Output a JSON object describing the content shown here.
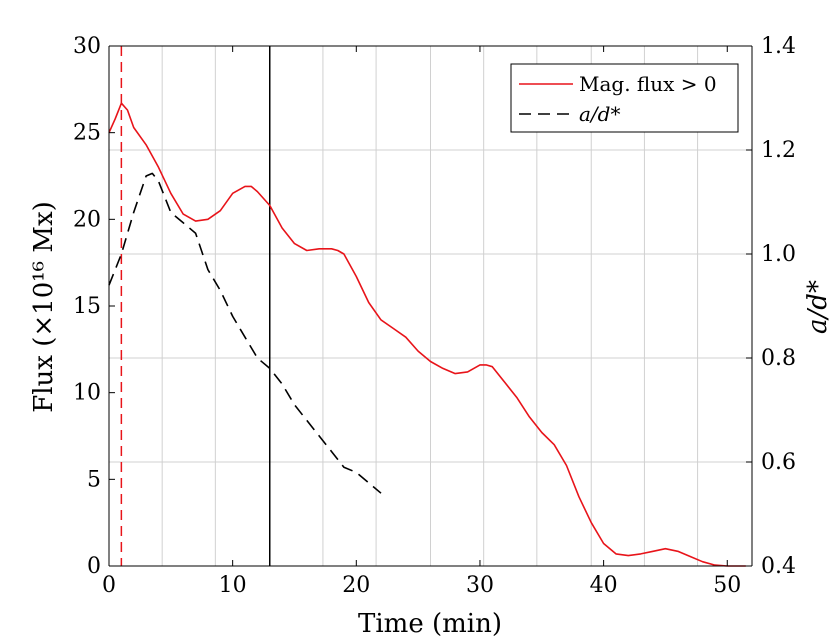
{
  "chart_data": {
    "type": "line",
    "xlabel": "Time (min)",
    "ylabel_left": "Flux (×10¹⁶ Mx)",
    "ylabel_right": "a/d*",
    "xlim": [
      0,
      52
    ],
    "ylim_left": [
      0,
      30
    ],
    "ylim_right": [
      0.4,
      1.4
    ],
    "xticks": [
      "0",
      "10",
      "20",
      "30",
      "40",
      "50"
    ],
    "yticks_left": [
      "0",
      "5",
      "10",
      "15",
      "20",
      "25",
      "30"
    ],
    "yticks_right": [
      "0.4",
      "0.6",
      "0.8",
      "1.0",
      "1.2",
      "1.4"
    ],
    "grid": true,
    "legend_position": "top-right",
    "series": [
      {
        "name": "Mag. flux > 0",
        "axis": "left",
        "color": "#e8141a",
        "style": "solid",
        "x": [
          0,
          0.5,
          1,
          1.5,
          2,
          3,
          4,
          5,
          6,
          7,
          8,
          9,
          10,
          11,
          11.5,
          12,
          13,
          14,
          15,
          16,
          17,
          18,
          18.5,
          19,
          20,
          21,
          22,
          23,
          24,
          25,
          26,
          27,
          28,
          29,
          30,
          30.5,
          31,
          32,
          33,
          34,
          35,
          36,
          37,
          38,
          39,
          40,
          41,
          42,
          43,
          44,
          45,
          46,
          47,
          48,
          49,
          50,
          51,
          51.5
        ],
        "y": [
          25,
          25.8,
          26.7,
          26.3,
          25.3,
          24.3,
          23,
          21.5,
          20.3,
          19.9,
          20,
          20.5,
          21.5,
          21.9,
          21.9,
          21.6,
          20.8,
          19.5,
          18.6,
          18.2,
          18.3,
          18.3,
          18.2,
          18.0,
          16.7,
          15.2,
          14.2,
          13.7,
          13.2,
          12.4,
          11.8,
          11.4,
          11.1,
          11.2,
          11.6,
          11.6,
          11.5,
          10.6,
          9.7,
          8.6,
          7.7,
          7.0,
          5.8,
          4.0,
          2.5,
          1.3,
          0.7,
          0.6,
          0.7,
          0.85,
          1.0,
          0.85,
          0.55,
          0.25,
          0.05,
          0.0,
          0.0,
          0.0
        ],
        "y_right_unused": true
      },
      {
        "name": "a/d*",
        "axis": "right",
        "color": "#000000",
        "style": "dashed",
        "x": [
          0,
          1,
          2,
          3,
          3.5,
          4,
          5,
          6,
          7,
          8,
          9,
          10,
          11,
          12,
          13,
          14,
          15,
          16,
          17,
          18,
          19,
          20,
          21,
          22
        ],
        "y": [
          0.94,
          1.0,
          1.08,
          1.15,
          1.155,
          1.14,
          1.08,
          1.06,
          1.04,
          0.97,
          0.93,
          0.88,
          0.84,
          0.8,
          0.78,
          0.75,
          0.71,
          0.68,
          0.65,
          0.62,
          0.59,
          0.58,
          0.56,
          0.54
        ]
      }
    ],
    "vertical_lines": [
      {
        "x": 1,
        "color": "#e8141a",
        "style": "dashed"
      },
      {
        "x": 13,
        "color": "#000000",
        "style": "solid"
      }
    ]
  }
}
